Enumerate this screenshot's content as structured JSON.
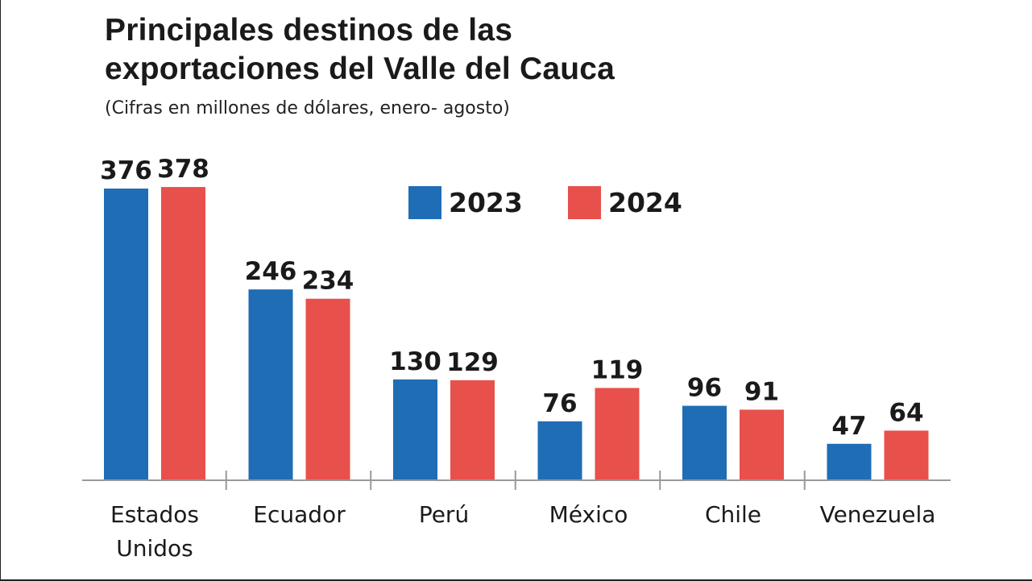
{
  "chart_data": {
    "type": "bar",
    "title_lines": [
      "Principales destinos de las",
      "exportaciones del Valle del Cauca"
    ],
    "subtitle": "(Cifras en millones de dólares, enero- agosto)",
    "categories": [
      [
        "Estados",
        "Unidos"
      ],
      [
        "Ecuador"
      ],
      [
        "Perú"
      ],
      [
        "México"
      ],
      [
        "Chile"
      ],
      [
        "Venezuela"
      ]
    ],
    "series": [
      {
        "name": "2023",
        "color": "#1f6db5",
        "values": [
          376,
          246,
          130,
          76,
          96,
          47
        ]
      },
      {
        "name": "2024",
        "color": "#e8504b",
        "values": [
          378,
          234,
          129,
          119,
          91,
          64
        ]
      }
    ],
    "ylim": [
      0,
      400
    ],
    "xlabel": "",
    "ylabel": "",
    "grid": false,
    "legend_position": "top-center"
  }
}
